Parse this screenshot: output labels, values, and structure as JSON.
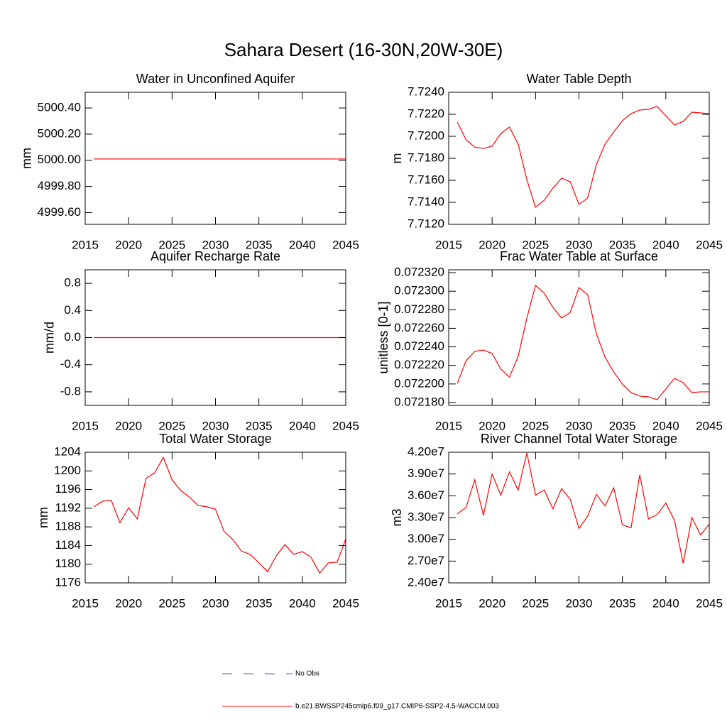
{
  "title": "Sahara Desert (16-30N,20W-30E)",
  "legend": [
    {
      "name": "No Obs",
      "color": "#5a5ab4",
      "dash": "dashed"
    },
    {
      "name": "b.e21.BWSSP245cmip6.f09_g17.CMIP6-SSP2-4.5-WACCM.003",
      "color": "#ff0000",
      "dash": "solid"
    }
  ],
  "chart_data": [
    {
      "type": "line",
      "title": "Water in Unconfined Aquifer",
      "ylabel": "mm",
      "x": [
        2016,
        2017,
        2018,
        2019,
        2020,
        2021,
        2022,
        2023,
        2024,
        2025,
        2026,
        2027,
        2028,
        2029,
        2030,
        2031,
        2032,
        2033,
        2034,
        2035,
        2036,
        2037,
        2038,
        2039,
        2040,
        2041,
        2042,
        2043,
        2044,
        2045
      ],
      "series": [
        {
          "color": "#ff0000",
          "values": [
            5000.01,
            5000.01,
            5000.01,
            5000.01,
            5000.01,
            5000.01,
            5000.01,
            5000.01,
            5000.01,
            5000.01,
            5000.01,
            5000.01,
            5000.01,
            5000.01,
            5000.01,
            5000.01,
            5000.01,
            5000.01,
            5000.01,
            5000.01,
            5000.01,
            5000.01,
            5000.01,
            5000.01,
            5000.01,
            5000.01,
            5000.01,
            5000.01,
            5000.01,
            5000.01
          ]
        }
      ],
      "xlim": [
        2015,
        2045
      ],
      "xticks": [
        2015,
        2020,
        2025,
        2030,
        2035,
        2040,
        2045
      ],
      "ylim": [
        4999.51,
        5000.52
      ],
      "yticks": [
        {
          "value": 4999.6,
          "label": "4999.60"
        },
        {
          "value": 4999.8,
          "label": "4999.80"
        },
        {
          "value": 5000,
          "label": "5000.00"
        },
        {
          "value": 5000.2,
          "label": "5000.20"
        },
        {
          "value": 5000.4,
          "label": "5000.40"
        }
      ]
    },
    {
      "type": "line",
      "title": "Water Table Depth",
      "ylabel": "m",
      "x": [
        2016,
        2017,
        2018,
        2019,
        2020,
        2021,
        2022,
        2023,
        2024,
        2025,
        2026,
        2027,
        2028,
        2029,
        2030,
        2031,
        2032,
        2033,
        2034,
        2035,
        2036,
        2037,
        2038,
        2039,
        2040,
        2041,
        2042,
        2043,
        2044,
        2045
      ],
      "series": [
        {
          "color": "#ff0000",
          "values": [
            7.72129,
            7.71968,
            7.71903,
            7.7189,
            7.7191,
            7.72026,
            7.72084,
            7.71929,
            7.71606,
            7.71355,
            7.71419,
            7.71529,
            7.71619,
            7.71587,
            7.71381,
            7.71439,
            7.71742,
            7.71929,
            7.72039,
            7.72142,
            7.72206,
            7.72239,
            7.72245,
            7.72271,
            7.72187,
            7.72103,
            7.72135,
            7.72219,
            7.72213,
            7.72206
          ]
        }
      ],
      "xlim": [
        2015,
        2045
      ],
      "xticks": [
        2015,
        2020,
        2025,
        2030,
        2035,
        2040,
        2045
      ],
      "ylim": [
        7.712,
        7.724
      ],
      "yticks": [
        {
          "value": 7.712,
          "label": "7.7120"
        },
        {
          "value": 7.714,
          "label": "7.7140"
        },
        {
          "value": 7.716,
          "label": "7.7160"
        },
        {
          "value": 7.718,
          "label": "7.7180"
        },
        {
          "value": 7.72,
          "label": "7.7200"
        },
        {
          "value": 7.722,
          "label": "7.7220"
        },
        {
          "value": 7.724,
          "label": "7.7240"
        }
      ]
    },
    {
      "type": "line",
      "title": "Aquifer Recharge Rate",
      "ylabel": "mm/d",
      "x": [
        2016,
        2017,
        2018,
        2019,
        2020,
        2021,
        2022,
        2023,
        2024,
        2025,
        2026,
        2027,
        2028,
        2029,
        2030,
        2031,
        2032,
        2033,
        2034,
        2035,
        2036,
        2037,
        2038,
        2039,
        2040,
        2041,
        2042,
        2043,
        2044,
        2045
      ],
      "series": [
        {
          "color": "#ff0000",
          "values": [
            0,
            0,
            0,
            0,
            0,
            0,
            0,
            0,
            0,
            0,
            0,
            0,
            0,
            0,
            0,
            0,
            0,
            0,
            0,
            0,
            0,
            0,
            0,
            0,
            0,
            0,
            0,
            0,
            0,
            0
          ]
        }
      ],
      "xlim": [
        2015,
        2045
      ],
      "xticks": [
        2015,
        2020,
        2025,
        2030,
        2035,
        2040,
        2045
      ],
      "ylim": [
        -1,
        1
      ],
      "yticks": [
        -0.8,
        -0.4,
        {
          "value": 0,
          "label": "0.0"
        },
        0.4,
        0.8
      ]
    },
    {
      "type": "line",
      "title": "Frac Water Table at Surface",
      "ylabel": "unitless [0-1]",
      "x": [
        2016,
        2017,
        2018,
        2019,
        2020,
        2021,
        2022,
        2023,
        2024,
        2025,
        2026,
        2027,
        2028,
        2029,
        2030,
        2031,
        2032,
        2033,
        2034,
        2035,
        2036,
        2037,
        2038,
        2039,
        2040,
        2041,
        2042,
        2043,
        2044,
        2045
      ],
      "series": [
        {
          "color": "#ff0000",
          "values": [
            0.0722007,
            0.0722251,
            0.0722351,
            0.0722366,
            0.0722328,
            0.072216,
            0.0722075,
            0.0722297,
            0.072271,
            0.0723062,
            0.0722978,
            0.0722825,
            0.072271,
            0.0722772,
            0.0723039,
            0.0722963,
            0.0722542,
            0.072229,
            0.0722129,
            0.0721999,
            0.0721907,
            0.0721869,
            0.0721861,
            0.0721831,
            0.0721945,
            0.072206,
            0.0722014,
            0.0721907,
            0.0721915,
            0.0721915
          ]
        }
      ],
      "xlim": [
        2015,
        2045
      ],
      "xticks": [
        2015,
        2020,
        2025,
        2030,
        2035,
        2040,
        2045
      ],
      "ylim": [
        0.0721769,
        0.0723231
      ],
      "yticks": [
        {
          "value": 0.07218,
          "label": "0.072180"
        },
        {
          "value": 0.0722,
          "label": "0.072200"
        },
        {
          "value": 0.07222,
          "label": "0.072220"
        },
        {
          "value": 0.07224,
          "label": "0.072240"
        },
        {
          "value": 0.07226,
          "label": "0.072260"
        },
        {
          "value": 0.07228,
          "label": "0.072280"
        },
        {
          "value": 0.0723,
          "label": "0.072300"
        },
        {
          "value": 0.07232,
          "label": "0.072320"
        }
      ]
    },
    {
      "type": "line",
      "title": "Total Water Storage",
      "ylabel": "mm",
      "x": [
        2016,
        2017,
        2018,
        2019,
        2020,
        2021,
        2022,
        2023,
        2024,
        2025,
        2026,
        2027,
        2028,
        2029,
        2030,
        2031,
        2032,
        2033,
        2034,
        2035,
        2036,
        2037,
        2038,
        2039,
        2040,
        2041,
        2042,
        2043,
        2044,
        2045
      ],
      "series": [
        {
          "color": "#ff0000",
          "values": [
            1192.3,
            1193.5,
            1193.7,
            1188.9,
            1192.1,
            1189.7,
            1198.4,
            1199.6,
            1202.9,
            1198.1,
            1195.8,
            1194.4,
            1192.6,
            1192.3,
            1191.8,
            1187.0,
            1185.3,
            1182.8,
            1182.1,
            1180.3,
            1178.4,
            1181.8,
            1184.2,
            1182.1,
            1182.7,
            1181.5,
            1178.1,
            1180.3,
            1180.4,
            1185.4
          ]
        }
      ],
      "xlim": [
        2015,
        2045
      ],
      "xticks": [
        2015,
        2020,
        2025,
        2030,
        2035,
        2040,
        2045
      ],
      "ylim": [
        1176,
        1204
      ],
      "yticks": [
        1176,
        1180,
        1184,
        1188,
        1192,
        1196,
        1200,
        1204
      ]
    },
    {
      "type": "line",
      "title": "River Channel Total Water Storage",
      "ylabel": "m3",
      "x": [
        2016,
        2017,
        2018,
        2019,
        2020,
        2021,
        2022,
        2023,
        2024,
        2025,
        2026,
        2027,
        2028,
        2029,
        2030,
        2031,
        2032,
        2033,
        2034,
        2035,
        2036,
        2037,
        2038,
        2039,
        2040,
        2041,
        2042,
        2043,
        2044,
        2045
      ],
      "series": [
        {
          "color": "#ff0000",
          "values": [
            33500000,
            34400000,
            38200000,
            33300000,
            39000000,
            36100000,
            39300000,
            36800000,
            41900000,
            36100000,
            36800000,
            34200000,
            37000000,
            35500000,
            31500000,
            33200000,
            36200000,
            34600000,
            37100000,
            32000000,
            31600000,
            38900000,
            32800000,
            33400000,
            35000000,
            32600000,
            26700000,
            33000000,
            30600000,
            32100000
          ]
        }
      ],
      "xlim": [
        2015,
        2045
      ],
      "xticks": [
        2015,
        2020,
        2025,
        2030,
        2035,
        2040,
        2045
      ],
      "ylim": [
        24000000,
        42000000
      ],
      "yticks": [
        {
          "value": 24000000,
          "label": "2.40e7"
        },
        {
          "value": 27000000,
          "label": "2.70e7"
        },
        {
          "value": 30000000,
          "label": "3.00e7"
        },
        {
          "value": 33000000,
          "label": "3.30e7"
        },
        {
          "value": 36000000,
          "label": "3.60e7"
        },
        {
          "value": 39000000,
          "label": "3.90e7"
        },
        {
          "value": 42000000,
          "label": "4.20e7"
        }
      ]
    }
  ]
}
